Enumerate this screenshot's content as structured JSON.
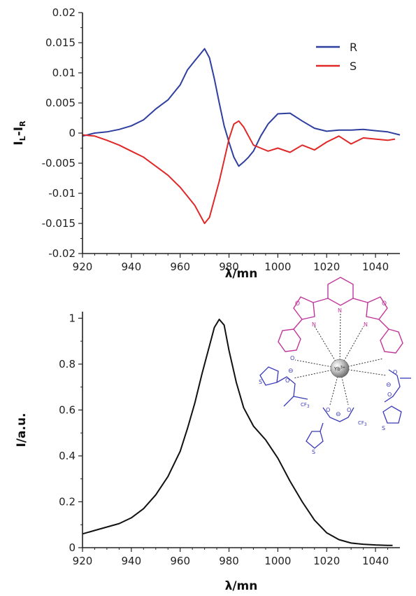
{
  "chart_data": [
    {
      "type": "line",
      "xlabel": "λ/mn",
      "ylabel_main": "I",
      "ylabel_sub1": "L",
      "ylabel_mid": "-I",
      "ylabel_sub2": "R",
      "xlim": [
        920,
        1050
      ],
      "ylim": [
        -0.02,
        0.02
      ],
      "xticks": [
        "920",
        "940",
        "960",
        "980",
        "1000",
        "1020",
        "1040"
      ],
      "xtick_values": [
        920,
        940,
        960,
        980,
        1000,
        1020,
        1040
      ],
      "yticks": [
        "0.02",
        "0.015",
        "0.01",
        "0.005",
        "0",
        "-0.005",
        "-0.01",
        "-0.015",
        "-0.02"
      ],
      "ytick_values": [
        0.02,
        0.015,
        0.01,
        0.005,
        0,
        -0.005,
        -0.01,
        -0.015,
        -0.02
      ],
      "legend_position": "top-right",
      "series": [
        {
          "name": "R",
          "color": "#2f3f9f",
          "x": [
            920,
            925,
            930,
            935,
            940,
            945,
            950,
            955,
            960,
            963,
            966,
            968,
            970,
            972,
            974,
            976,
            978,
            980,
            982,
            984,
            986,
            988,
            990,
            993,
            996,
            1000,
            1005,
            1010,
            1015,
            1020,
            1025,
            1030,
            1035,
            1040,
            1045,
            1050
          ],
          "y": [
            -0.0005,
            0.0,
            0.0002,
            0.0006,
            0.0012,
            0.0022,
            0.004,
            0.0055,
            0.008,
            0.0105,
            0.012,
            0.013,
            0.014,
            0.0125,
            0.009,
            0.005,
            0.0012,
            -0.0015,
            -0.004,
            -0.0055,
            -0.0048,
            -0.004,
            -0.003,
            -0.0005,
            0.0015,
            0.0032,
            0.0033,
            0.002,
            0.0008,
            0.0003,
            0.0005,
            0.0005,
            0.0006,
            0.0004,
            0.0002,
            -0.0003
          ]
        },
        {
          "name": "S",
          "color": "#e02828",
          "x": [
            920,
            925,
            930,
            935,
            940,
            945,
            950,
            955,
            960,
            963,
            966,
            968,
            970,
            972,
            974,
            976,
            978,
            980,
            982,
            984,
            986,
            988,
            990,
            993,
            996,
            1000,
            1005,
            1010,
            1015,
            1020,
            1025,
            1030,
            1035,
            1040,
            1045,
            1048
          ],
          "y": [
            -0.0003,
            -0.0005,
            -0.0012,
            -0.002,
            -0.003,
            -0.004,
            -0.0055,
            -0.007,
            -0.009,
            -0.0105,
            -0.012,
            -0.0135,
            -0.015,
            -0.014,
            -0.011,
            -0.008,
            -0.0045,
            -0.001,
            0.0015,
            0.002,
            0.001,
            -0.0005,
            -0.002,
            -0.0025,
            -0.003,
            -0.0025,
            -0.0032,
            -0.002,
            -0.0028,
            -0.0015,
            -0.0005,
            -0.0018,
            -0.0008,
            -0.001,
            -0.0012,
            -0.001
          ]
        }
      ]
    },
    {
      "type": "line",
      "xlabel": "λ/mn",
      "ylabel": "I/a.u.",
      "xlim": [
        920,
        1050
      ],
      "ylim": [
        0,
        1.05
      ],
      "xticks": [
        "920",
        "940",
        "960",
        "980",
        "1000",
        "1020",
        "1040"
      ],
      "xtick_values": [
        920,
        940,
        960,
        980,
        1000,
        1020,
        1040
      ],
      "yticks": [
        "1",
        "0.8",
        "0.6",
        "0.4",
        "0.2",
        "0"
      ],
      "ytick_values": [
        1,
        0.8,
        0.6,
        0.4,
        0.2,
        0
      ],
      "series": [
        {
          "color": "#111111",
          "x": [
            920,
            925,
            930,
            935,
            940,
            945,
            950,
            955,
            960,
            963,
            966,
            969,
            972,
            974,
            976,
            978,
            980,
            983,
            986,
            990,
            995,
            1000,
            1005,
            1010,
            1015,
            1020,
            1025,
            1030,
            1035,
            1040,
            1045,
            1047
          ],
          "y": [
            0.06,
            0.075,
            0.09,
            0.105,
            0.13,
            0.17,
            0.23,
            0.31,
            0.42,
            0.52,
            0.63,
            0.76,
            0.88,
            0.96,
            0.995,
            0.97,
            0.86,
            0.72,
            0.61,
            0.53,
            0.47,
            0.39,
            0.29,
            0.2,
            0.12,
            0.065,
            0.035,
            0.02,
            0.015,
            0.012,
            0.01,
            0.01
          ]
        }
      ]
    }
  ],
  "inset": {
    "ion_label": "Yb",
    "ion_charge": "3+",
    "cf3_label": "CF",
    "cf3_sub": "3",
    "oxygen": "O",
    "nitrogen": "N",
    "sulfur": "S",
    "minus": "⊖",
    "ligand_color": "#3a3ab8",
    "pybox_color": "#c0359a"
  }
}
